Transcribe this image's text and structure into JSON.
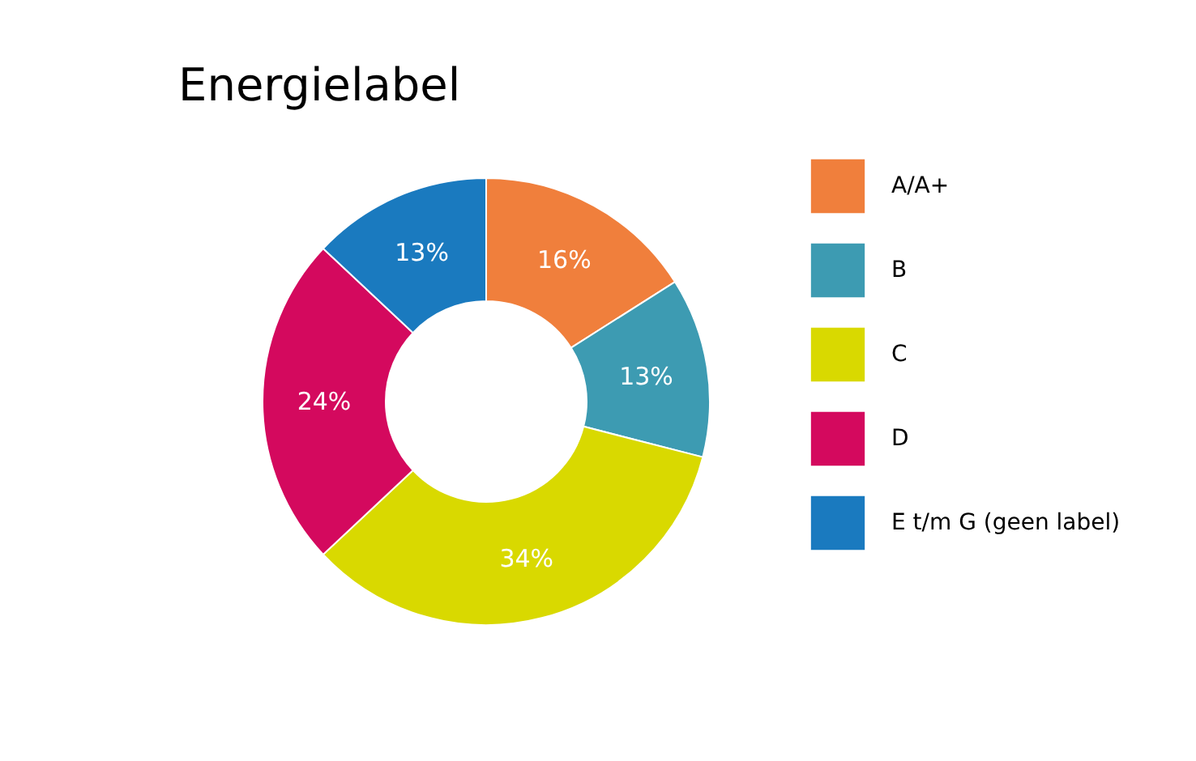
{
  "chart_data": {
    "type": "donut",
    "title": "Energielabel",
    "categories": [
      "A/A+",
      "B",
      "C",
      "D",
      "E t/m G (geen label)"
    ],
    "values": [
      16,
      13,
      34,
      24,
      13
    ],
    "colors": [
      "#f07f3c",
      "#3d9bb2",
      "#d9d900",
      "#d4095e",
      "#1a7abf"
    ],
    "value_labels": [
      "16%",
      "13%",
      "34%",
      "24%",
      "13%"
    ],
    "legend": "right"
  }
}
